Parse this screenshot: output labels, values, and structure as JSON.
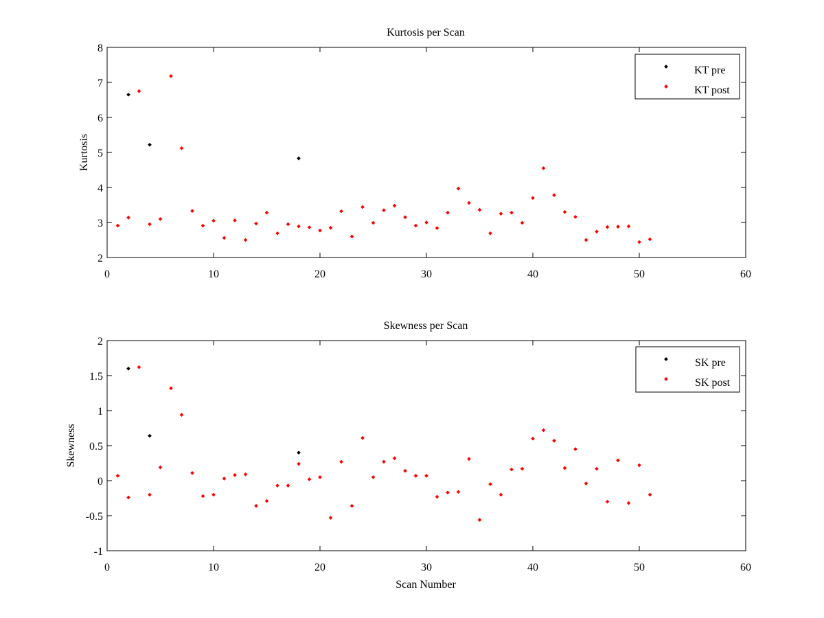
{
  "chart_data": [
    {
      "type": "scatter",
      "title": "Kurtosis per Scan",
      "xlabel": "",
      "ylabel": "Kurtosis",
      "xlim": [
        0,
        60
      ],
      "ylim": [
        2,
        8
      ],
      "xticks": [
        0,
        10,
        20,
        30,
        40,
        50,
        60
      ],
      "yticks": [
        2,
        3,
        4,
        5,
        6,
        7,
        8
      ],
      "grid": false,
      "legend_position": "top-right",
      "series": [
        {
          "name": "KT pre",
          "color": "#000000",
          "points": [
            [
              2,
              6.65
            ],
            [
              4,
              5.22
            ],
            [
              18,
              4.83
            ]
          ]
        },
        {
          "name": "KT post",
          "color": "#ff0000",
          "points": [
            [
              1,
              2.91
            ],
            [
              2,
              3.14
            ],
            [
              3,
              6.75
            ],
            [
              4,
              2.95
            ],
            [
              5,
              3.1
            ],
            [
              6,
              7.18
            ],
            [
              7,
              5.12
            ],
            [
              8,
              3.33
            ],
            [
              9,
              2.91
            ],
            [
              10,
              3.05
            ],
            [
              11,
              2.56
            ],
            [
              12,
              3.06
            ],
            [
              13,
              2.5
            ],
            [
              14,
              2.97
            ],
            [
              15,
              3.28
            ],
            [
              16,
              2.69
            ],
            [
              17,
              2.95
            ],
            [
              18,
              2.89
            ],
            [
              19,
              2.86
            ],
            [
              20,
              2.77
            ],
            [
              21,
              2.85
            ],
            [
              22,
              3.32
            ],
            [
              23,
              2.6
            ],
            [
              24,
              3.44
            ],
            [
              25,
              2.99
            ],
            [
              26,
              3.35
            ],
            [
              27,
              3.48
            ],
            [
              28,
              3.15
            ],
            [
              29,
              2.91
            ],
            [
              30,
              3.0
            ],
            [
              31,
              2.84
            ],
            [
              32,
              3.28
            ],
            [
              33,
              3.97
            ],
            [
              34,
              3.56
            ],
            [
              35,
              3.36
            ],
            [
              36,
              2.69
            ],
            [
              37,
              3.25
            ],
            [
              38,
              3.28
            ],
            [
              39,
              2.99
            ],
            [
              40,
              3.7
            ],
            [
              41,
              4.55
            ],
            [
              42,
              3.78
            ],
            [
              43,
              3.3
            ],
            [
              44,
              3.16
            ],
            [
              45,
              2.5
            ],
            [
              46,
              2.74
            ],
            [
              47,
              2.87
            ],
            [
              48,
              2.88
            ],
            [
              49,
              2.89
            ],
            [
              50,
              2.44
            ],
            [
              51,
              2.52
            ]
          ]
        }
      ]
    },
    {
      "type": "scatter",
      "title": "Skewness per Scan",
      "xlabel": "Scan Number",
      "ylabel": "Skewness",
      "xlim": [
        0,
        60
      ],
      "ylim": [
        -1,
        2
      ],
      "xticks": [
        0,
        10,
        20,
        30,
        40,
        50,
        60
      ],
      "yticks": [
        -1,
        -0.5,
        0,
        0.5,
        1,
        1.5,
        2
      ],
      "grid": false,
      "legend_position": "top-right",
      "series": [
        {
          "name": "SK pre",
          "color": "#000000",
          "points": [
            [
              2,
              1.6
            ],
            [
              4,
              0.64
            ],
            [
              18,
              0.4
            ]
          ]
        },
        {
          "name": "SK post",
          "color": "#ff0000",
          "points": [
            [
              1,
              0.07
            ],
            [
              2,
              -0.24
            ],
            [
              3,
              1.62
            ],
            [
              4,
              -0.2
            ],
            [
              5,
              0.19
            ],
            [
              6,
              1.32
            ],
            [
              7,
              0.94
            ],
            [
              8,
              0.11
            ],
            [
              9,
              -0.22
            ],
            [
              10,
              -0.2
            ],
            [
              11,
              0.03
            ],
            [
              12,
              0.08
            ],
            [
              13,
              0.09
            ],
            [
              14,
              -0.36
            ],
            [
              15,
              -0.29
            ],
            [
              16,
              -0.07
            ],
            [
              17,
              -0.07
            ],
            [
              18,
              0.24
            ],
            [
              19,
              0.02
            ],
            [
              20,
              0.05
            ],
            [
              21,
              -0.53
            ],
            [
              22,
              0.27
            ],
            [
              23,
              -0.36
            ],
            [
              24,
              0.61
            ],
            [
              25,
              0.05
            ],
            [
              26,
              0.27
            ],
            [
              27,
              0.32
            ],
            [
              28,
              0.14
            ],
            [
              29,
              0.07
            ],
            [
              30,
              0.07
            ],
            [
              31,
              -0.23
            ],
            [
              32,
              -0.17
            ],
            [
              33,
              -0.16
            ],
            [
              34,
              0.31
            ],
            [
              35,
              -0.56
            ],
            [
              36,
              -0.05
            ],
            [
              37,
              -0.2
            ],
            [
              38,
              0.16
            ],
            [
              39,
              0.17
            ],
            [
              40,
              0.6
            ],
            [
              41,
              0.72
            ],
            [
              42,
              0.57
            ],
            [
              43,
              0.18
            ],
            [
              44,
              0.45
            ],
            [
              45,
              -0.04
            ],
            [
              46,
              0.17
            ],
            [
              47,
              -0.3
            ],
            [
              48,
              0.29
            ],
            [
              49,
              -0.32
            ],
            [
              50,
              0.22
            ],
            [
              51,
              -0.2
            ]
          ]
        }
      ]
    }
  ]
}
